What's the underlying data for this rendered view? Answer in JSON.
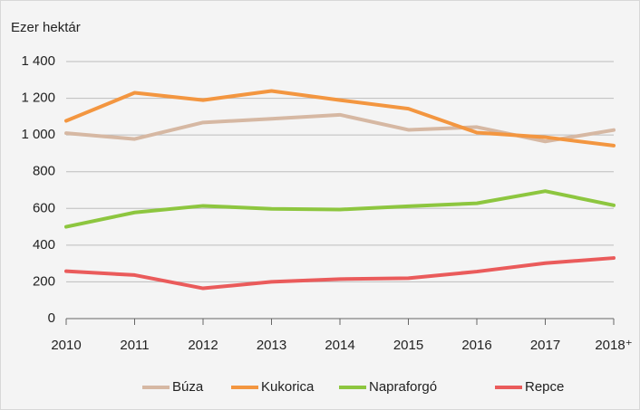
{
  "chart_data": {
    "type": "line",
    "y_axis_label": "Ezer hektár",
    "categories": [
      "2010",
      "2011",
      "2012",
      "2013",
      "2014",
      "2015",
      "2016",
      "2017",
      "2018⁺"
    ],
    "series": [
      {
        "name": "Búza",
        "color": "#d6b8a3",
        "values": [
          1010,
          978,
          1068,
          1088,
          1110,
          1028,
          1043,
          965,
          1027
        ]
      },
      {
        "name": "Kukorica",
        "color": "#f39640",
        "values": [
          1077,
          1230,
          1190,
          1240,
          1190,
          1143,
          1013,
          988,
          942
        ]
      },
      {
        "name": "Napraforgó",
        "color": "#8dc63f",
        "values": [
          500,
          578,
          614,
          598,
          594,
          612,
          628,
          694,
          617
        ]
      },
      {
        "name": "Repce",
        "color": "#ea5b5b",
        "values": [
          258,
          237,
          165,
          200,
          215,
          220,
          256,
          302,
          330
        ]
      }
    ],
    "ylim": [
      0,
      1400
    ],
    "yticks": [
      0,
      200,
      400,
      600,
      800,
      {
        "value": 1000,
        "label": "1 000"
      },
      {
        "value": 1200,
        "label": "1 200"
      },
      {
        "value": 1400,
        "label": "1 400"
      }
    ],
    "grid": true,
    "legend": "bottom"
  }
}
